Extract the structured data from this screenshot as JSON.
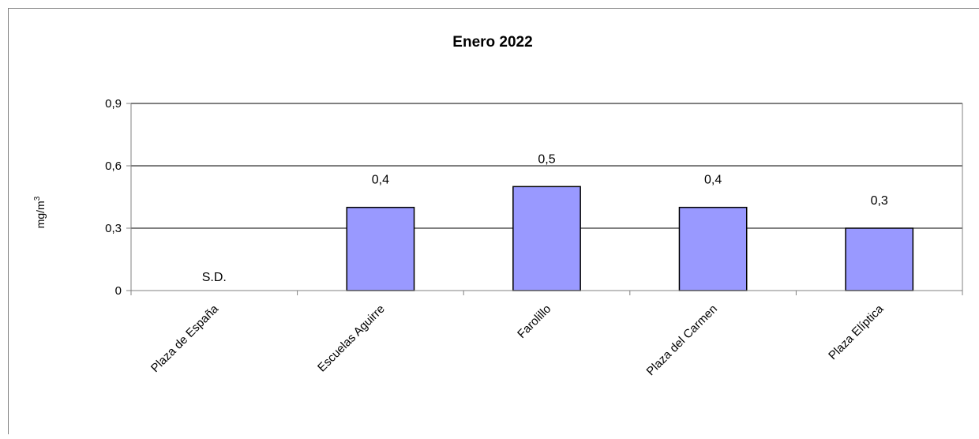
{
  "chart_data": {
    "type": "bar",
    "title": "Enero 2022",
    "ylabel": "mg/m",
    "ylabel_sup": "3",
    "xlabel": "",
    "categories": [
      "Plaza de España",
      "Escuelas Aguirre",
      "Farolillo",
      "Plaza del Carmen",
      "Plaza Elíptica"
    ],
    "values": [
      null,
      0.4,
      0.5,
      0.4,
      0.3
    ],
    "data_labels": [
      "S.D.",
      "0,4",
      "0,5",
      "0,4",
      "0,3"
    ],
    "ylim": [
      0,
      0.9
    ],
    "yticks": [
      0,
      0.3,
      0.6,
      0.9
    ],
    "ytick_labels": [
      "0",
      "0,3",
      "0,6",
      "0,9"
    ],
    "grid": true,
    "legend": "none",
    "colors": {
      "bar_fill": "#9999ff",
      "bar_stroke": "#000000",
      "gridline": "#000000",
      "axis": "#808080"
    }
  }
}
